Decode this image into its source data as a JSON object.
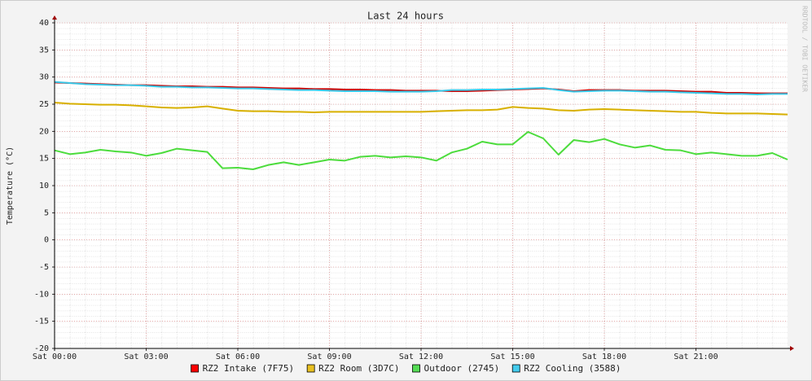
{
  "chart_data": {
    "type": "line",
    "title": "Last 24 hours",
    "y_label": "Temperature (°C)",
    "watermark": "RRDTOOL / TOBI OETIKER",
    "x": [
      0,
      0.5,
      1,
      1.5,
      2,
      2.5,
      3,
      3.5,
      4,
      4.5,
      5,
      5.5,
      6,
      6.5,
      7,
      7.5,
      8,
      8.5,
      9,
      9.5,
      10,
      10.5,
      11,
      11.5,
      12,
      12.5,
      13,
      13.5,
      14,
      14.5,
      15,
      15.5,
      16,
      16.5,
      17,
      17.5,
      18,
      18.5,
      19,
      19.5,
      20,
      20.5,
      21,
      21.5,
      22,
      22.5,
      23,
      23.5,
      24
    ],
    "xlim": [
      0,
      24
    ],
    "xticks": [
      {
        "value": 0,
        "label": "Sat 00:00"
      },
      {
        "value": 3,
        "label": "Sat 03:00"
      },
      {
        "value": 6,
        "label": "Sat 06:00"
      },
      {
        "value": 9,
        "label": "Sat 09:00"
      },
      {
        "value": 12,
        "label": "Sat 12:00"
      },
      {
        "value": 15,
        "label": "Sat 15:00"
      },
      {
        "value": 18,
        "label": "Sat 18:00"
      },
      {
        "value": 21,
        "label": "Sat 21:00"
      }
    ],
    "ylim": [
      -20,
      40
    ],
    "yticks": [
      -20,
      -15,
      -10,
      -5,
      0,
      5,
      10,
      15,
      20,
      25,
      30,
      35,
      40
    ],
    "grid": true,
    "legend": "bottom",
    "series": [
      {
        "name": "RZ2 Intake (7F75)",
        "color": "#cc0000",
        "legend_color": "#ff0000",
        "values": [
          29,
          28.9,
          28.8,
          28.7,
          28.6,
          28.5,
          28.5,
          28.4,
          28.3,
          28.3,
          28.2,
          28.2,
          28.1,
          28.1,
          28.0,
          27.9,
          27.9,
          27.8,
          27.8,
          27.7,
          27.7,
          27.6,
          27.6,
          27.5,
          27.5,
          27.5,
          27.4,
          27.4,
          27.5,
          27.6,
          27.7,
          27.8,
          27.9,
          27.7,
          27.4,
          27.6,
          27.6,
          27.6,
          27.5,
          27.5,
          27.5,
          27.4,
          27.3,
          27.3,
          27.1,
          27.1,
          27.0,
          27.0,
          27.0
        ]
      },
      {
        "name": "RZ2 Room (3D7C)",
        "color": "#d8b000",
        "legend_color": "#e8c020",
        "values": [
          25.3,
          25.1,
          25.0,
          24.9,
          24.9,
          24.8,
          24.6,
          24.4,
          24.3,
          24.4,
          24.6,
          24.2,
          23.8,
          23.7,
          23.7,
          23.6,
          23.6,
          23.5,
          23.6,
          23.6,
          23.6,
          23.6,
          23.6,
          23.6,
          23.6,
          23.7,
          23.8,
          23.9,
          23.9,
          24.0,
          24.5,
          24.3,
          24.2,
          23.9,
          23.8,
          24.0,
          24.1,
          24.0,
          23.9,
          23.8,
          23.7,
          23.6,
          23.6,
          23.4,
          23.3,
          23.3,
          23.3,
          23.2,
          23.1
        ]
      },
      {
        "name": "Outdoor (2745)",
        "color": "#4cdc3c",
        "legend_color": "#55dd55",
        "values": [
          16.5,
          15.8,
          16.1,
          16.6,
          16.3,
          16.1,
          15.5,
          16.0,
          16.8,
          16.5,
          16.2,
          13.2,
          13.3,
          13.0,
          13.8,
          14.3,
          13.8,
          14.3,
          14.8,
          14.6,
          15.3,
          15.5,
          15.2,
          15.4,
          15.2,
          14.6,
          16.1,
          16.8,
          18.1,
          17.6,
          17.6,
          19.9,
          18.7,
          15.7,
          18.4,
          18.0,
          18.6,
          17.6,
          17.0,
          17.4,
          16.6,
          16.5,
          15.8,
          16.1,
          15.8,
          15.5,
          15.5,
          16.0,
          14.8
        ]
      },
      {
        "name": "RZ2 Cooling (3588)",
        "color": "#38c8e8",
        "legend_color": "#44ccee",
        "values": [
          29.1,
          28.9,
          28.7,
          28.6,
          28.5,
          28.5,
          28.4,
          28.2,
          28.2,
          28.1,
          28.1,
          28.0,
          27.9,
          27.9,
          27.8,
          27.7,
          27.6,
          27.6,
          27.5,
          27.4,
          27.4,
          27.4,
          27.3,
          27.3,
          27.3,
          27.4,
          27.6,
          27.6,
          27.7,
          27.7,
          27.8,
          27.9,
          28.0,
          27.6,
          27.3,
          27.4,
          27.5,
          27.5,
          27.4,
          27.3,
          27.3,
          27.2,
          27.1,
          27.0,
          26.9,
          26.9,
          26.8,
          26.9,
          26.9
        ]
      }
    ]
  }
}
